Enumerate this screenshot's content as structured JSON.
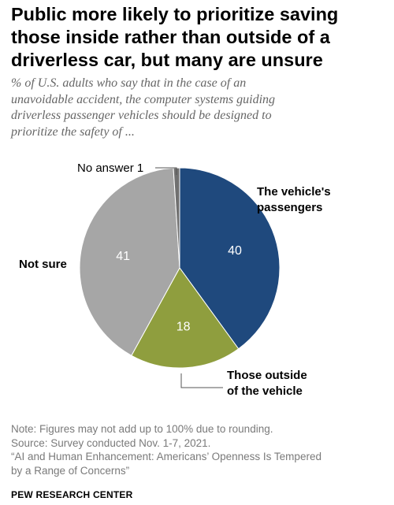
{
  "title": "Public more likely to prioritize saving those inside rather than outside of a driverless car, but many are unsure",
  "subtitle_lines": [
    "% of U.S. adults who say that in the case of an",
    "unavoidable accident, the computer systems guiding",
    "driverless passenger vehicles should be designed to",
    "prioritize the safety of ..."
  ],
  "chart_data": {
    "type": "pie",
    "title": "",
    "slices": [
      {
        "label_lines": [
          "The vehicle's",
          "passengers"
        ],
        "value": 40,
        "color": "#1f497d"
      },
      {
        "label_lines": [
          "Those outside",
          "of the vehicle"
        ],
        "value": 18,
        "color": "#8f9e3e"
      },
      {
        "label_lines": [
          "Not sure"
        ],
        "value": 41,
        "color": "#a6a6a6"
      },
      {
        "label_lines": [
          "No answer 1"
        ],
        "value": 1,
        "color": "#707070"
      }
    ]
  },
  "notes": {
    "note": "Note: Figures may not add up to 100% due to rounding.",
    "source": "Source: Survey conducted Nov. 1-7, 2021.",
    "report_line1": "“AI and Human Enhancement: Americans’ Openness Is Tempered",
    "report_line2": "by a Range of Concerns”"
  },
  "brand": "PEW RESEARCH CENTER"
}
